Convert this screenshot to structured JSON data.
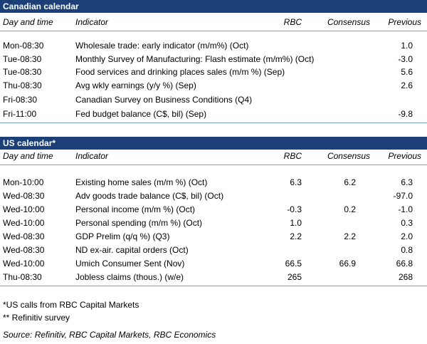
{
  "sections": [
    {
      "title": "Canadian calendar",
      "headers": [
        "Day and time",
        "Indicator",
        "RBC",
        "Consensus",
        "Previous"
      ],
      "rows": [
        [
          "Mon-08:30",
          "Wholesale trade: early indicator (m/m%) (Oct)",
          null,
          null,
          "1.0"
        ],
        [
          "Tue-08:30",
          "Monthly Survey of Manufacturing: Flash estimate (m/m%) (Oct)",
          null,
          null,
          "-3.0"
        ],
        [
          "Tue-08:30",
          "Food services and drinking places sales (m/m %) (Sep)",
          null,
          null,
          "5.6"
        ],
        [
          "Thu-08:30",
          "Avg wkly earnings (y/y %) (Sep)",
          null,
          null,
          "2.6"
        ],
        [
          "Fri-08:30",
          "Canadian Survey on Business Conditions (Q4)",
          null,
          null,
          null
        ],
        [
          "Fri-11:00",
          "Fed budget balance (C$, bil) (Sep)",
          null,
          null,
          "-9.8"
        ]
      ]
    },
    {
      "title": "US calendar*",
      "headers": [
        "Day and time",
        "Indicator",
        "RBC",
        "Consensus",
        "Previous"
      ],
      "rows": [
        [
          "Mon-10:00",
          "Existing home sales (m/m %) (Oct)",
          "6.3",
          "6.2",
          "6.3"
        ],
        [
          "Wed-08:30",
          "Adv goods trade balance (C$, bil) (Oct)",
          null,
          null,
          "-97.0"
        ],
        [
          "Wed-10:00",
          "Personal income (m/m %) (Oct)",
          "-0.3",
          "0.2",
          "-1.0"
        ],
        [
          "Wed-10:00",
          "Personal spending (m/m %) (Oct)",
          "1.0",
          null,
          "0.3"
        ],
        [
          "Wed-08:30",
          "GDP Prelim (q/q %) (Q3)",
          "2.2",
          "2.2",
          "2.0"
        ],
        [
          "Wed-08:30",
          "ND ex-air. capital orders (Oct)",
          null,
          null,
          "0.8"
        ],
        [
          "Wed-10:00",
          "Umich Consumer Sent (Nov)",
          "66.5",
          "66.9",
          "66.8"
        ],
        [
          "Thu-08:30",
          "Jobless claims (thous.) (w/e)",
          "265",
          null,
          "268"
        ]
      ]
    }
  ],
  "footnotes": [
    "*US calls from RBC Capital Markets",
    "** Refinitiv survey"
  ],
  "source": "Source: Refinitiv, RBC Capital Markets, RBC Economics"
}
